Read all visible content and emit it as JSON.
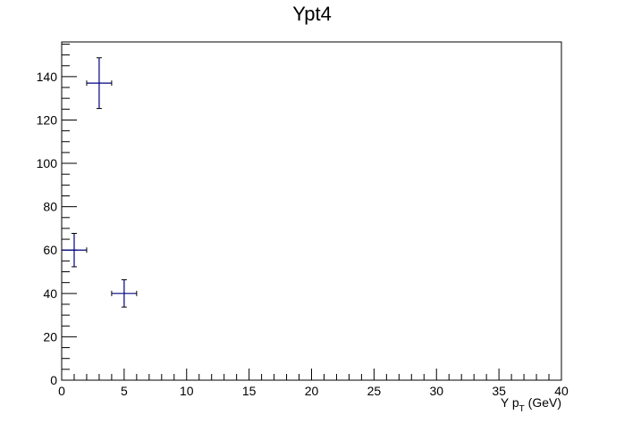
{
  "chart_data": {
    "type": "scatter",
    "title": "Ypt4",
    "xlabel": "Υ p_T (GeV)",
    "xlabel_parts": {
      "prefix": "Υ p",
      "subscript": "T",
      "suffix": "(GeV)"
    },
    "ylabel": "",
    "xlim": [
      0,
      40
    ],
    "ylim": [
      0,
      156
    ],
    "x_ticks": [
      0,
      5,
      10,
      15,
      20,
      25,
      30,
      35,
      40
    ],
    "y_ticks": [
      0,
      20,
      40,
      60,
      80,
      100,
      120,
      140
    ],
    "grid": false,
    "legend": "none",
    "marker_color": "#000080",
    "points": [
      {
        "x": 1,
        "xerr": 1,
        "y": 60,
        "yerr": 7.7
      },
      {
        "x": 3,
        "xerr": 1,
        "y": 137,
        "yerr": 11.7
      },
      {
        "x": 5,
        "xerr": 1,
        "y": 40,
        "yerr": 6.3
      }
    ]
  }
}
